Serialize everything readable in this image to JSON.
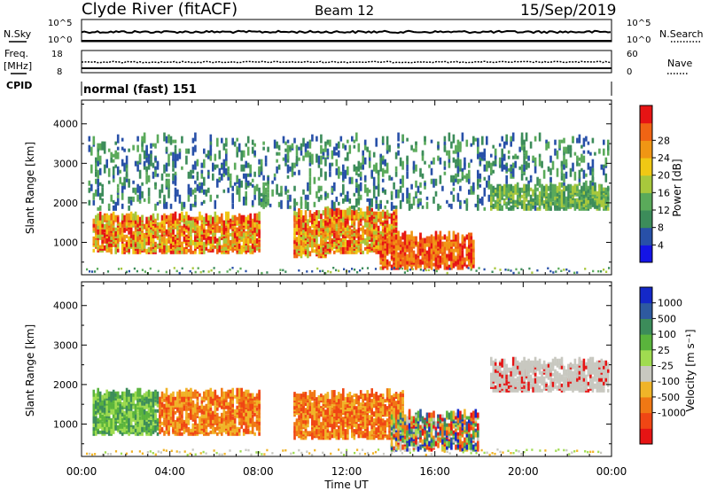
{
  "header": {
    "title": "Clyde River (fitACF)",
    "beam": "Beam 12",
    "date": "15/Sep/2019"
  },
  "summary": {
    "nsky_label": "N.Sky",
    "nsky_ticks": [
      "10^5",
      "10^0"
    ],
    "nsearch_label": "N.Search",
    "nsearch_ticks": [
      "10^5",
      "10^0"
    ],
    "freq_label": "Freq.",
    "freq_unit": "[MHz]",
    "freq_ticks": [
      "18",
      "8"
    ],
    "nave_label": "Nave",
    "nave_ticks": [
      "60",
      "0"
    ],
    "cpid_label": "CPID",
    "cpid_value": "normal (fast) 151"
  },
  "chart_data": [
    {
      "type": "heatmap",
      "panel": "power",
      "ylabel": "Slant Range [km]",
      "yticks": [
        "1000",
        "2000",
        "3000",
        "4000"
      ],
      "ylim": [
        180,
        4600
      ],
      "xlim_hours": [
        0,
        24
      ],
      "colorbar_label": "Power [dB]",
      "colorbar_ticks": [
        "4",
        "8",
        "12",
        "16",
        "20",
        "24",
        "28"
      ],
      "colors": [
        "#1414e6",
        "#2850a8",
        "#3c8c5a",
        "#5aaa5a",
        "#a8c83c",
        "#f0c814",
        "#f09614",
        "#f06414",
        "#e61414"
      ],
      "features": [
        {
          "t0": 0.5,
          "t1": 8.0,
          "r0": 700,
          "r1": 1600,
          "level": "high"
        },
        {
          "t0": 9.6,
          "t1": 11.0,
          "r0": 600,
          "r1": 1700,
          "level": "high"
        },
        {
          "t0": 11.0,
          "t1": 14.2,
          "r0": 700,
          "r1": 1700,
          "level": "high"
        },
        {
          "t0": 13.5,
          "t1": 17.8,
          "r0": 300,
          "r1": 1100,
          "level": "very high"
        },
        {
          "t0": 0.3,
          "t1": 23.9,
          "r0": 1800,
          "r1": 3600,
          "level": "low"
        },
        {
          "t0": 18.5,
          "t1": 23.9,
          "r0": 1800,
          "r1": 2300,
          "level": "medium"
        }
      ]
    },
    {
      "type": "heatmap",
      "panel": "velocity",
      "ylabel": "Slant Range [km]",
      "yticks": [
        "1000",
        "2000",
        "3000",
        "4000"
      ],
      "ylim": [
        180,
        4600
      ],
      "xlim_hours": [
        0,
        24
      ],
      "colorbar_label": "Velocity  [m s⁻¹]",
      "colorbar_ticks": [
        "1000",
        "500",
        "100",
        "25",
        "-25",
        "-100",
        "-500",
        "-1000"
      ],
      "colors": [
        "#1428c8",
        "#2e5aa0",
        "#3c8c5a",
        "#5ab43c",
        "#a0dc50",
        "#c8c8c0",
        "#f0b428",
        "#f07814",
        "#f04614",
        "#e61414"
      ],
      "features": [
        {
          "t0": 0.5,
          "t1": 3.5,
          "r0": 700,
          "r1": 1700,
          "level": "towards"
        },
        {
          "t0": 3.5,
          "t1": 8.0,
          "r0": 700,
          "r1": 1700,
          "level": "away"
        },
        {
          "t0": 9.6,
          "t1": 14.5,
          "r0": 600,
          "r1": 1700,
          "level": "away"
        },
        {
          "t0": 14.0,
          "t1": 18.0,
          "r0": 300,
          "r1": 1200,
          "level": "mixed"
        },
        {
          "t0": 18.5,
          "t1": 23.9,
          "r0": 1800,
          "r1": 2500,
          "level": "near zero"
        }
      ]
    }
  ],
  "xaxis": {
    "label": "Time UT",
    "ticks": [
      "00:00",
      "04:00",
      "08:00",
      "12:00",
      "16:00",
      "20:00",
      "00:00"
    ]
  }
}
